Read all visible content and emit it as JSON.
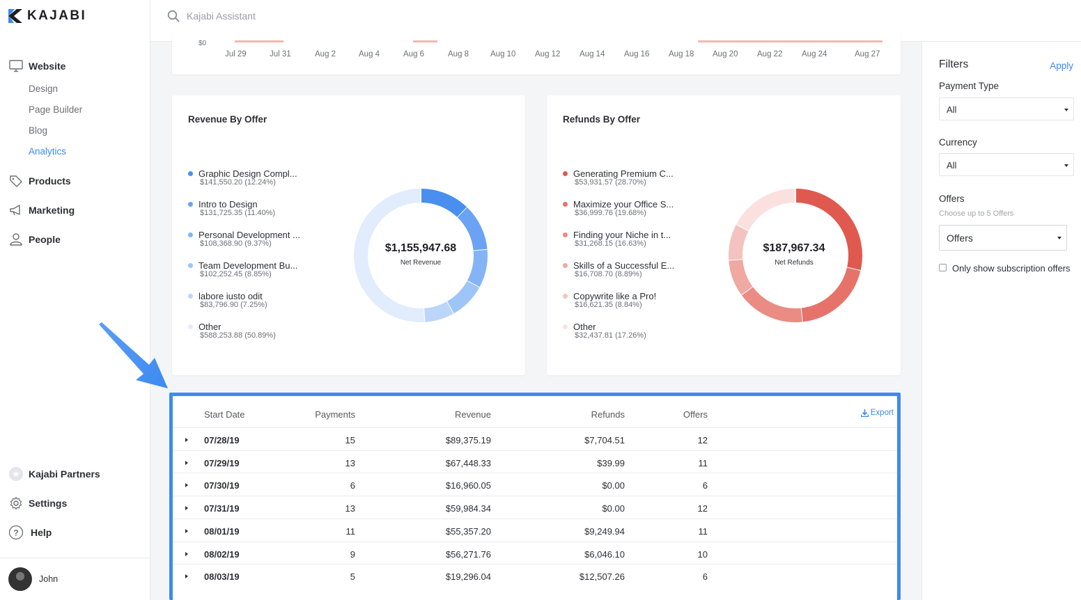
{
  "app": {
    "logo_text": "KAJABI",
    "search_placeholder": "Kajabi Assistant"
  },
  "sidebar": {
    "website_label": "Website",
    "website_items": [
      "Design",
      "Page Builder",
      "Blog",
      "Analytics"
    ],
    "active_item": "Analytics",
    "products_label": "Products",
    "marketing_label": "Marketing",
    "people_label": "People",
    "partners_label": "Kajabi Partners",
    "settings_label": "Settings",
    "help_label": "Help",
    "user_name": "John"
  },
  "timeline": {
    "y_tick": "$0",
    "dates": [
      "Jul 29",
      "Jul 31",
      "Aug 2",
      "Aug 4",
      "Aug 6",
      "Aug 8",
      "Aug 10",
      "Aug 12",
      "Aug 14",
      "Aug 16",
      "Aug 18",
      "Aug 20",
      "Aug 22",
      "Aug 24",
      "Aug 27"
    ]
  },
  "revenue_by_offer": {
    "title": "Revenue By Offer",
    "total": "$1,155,947.68",
    "total_label": "Net Revenue",
    "items": [
      {
        "name": "Graphic Design Compl...",
        "value": "$141,550.20 (12.24%)",
        "pct": 12.24,
        "color": "#4a8ff0"
      },
      {
        "name": "Intro to Design",
        "value": "$131,725.35 (11.40%)",
        "pct": 11.4,
        "color": "#6aa3f4"
      },
      {
        "name": "Personal Development ...",
        "value": "$108,368.90 (9.37%)",
        "pct": 9.37,
        "color": "#84b4f6"
      },
      {
        "name": "Team Development Bu...",
        "value": "$102,252.45 (8.85%)",
        "pct": 8.85,
        "color": "#9fc4f8"
      },
      {
        "name": "labore iusto odit",
        "value": "$83,796.90 (7.25%)",
        "pct": 7.25,
        "color": "#bcd6fa"
      },
      {
        "name": "Other",
        "value": "$588,253.88 (50.89%)",
        "pct": 50.89,
        "color": "#e1ecfc"
      }
    ]
  },
  "refunds_by_offer": {
    "title": "Refunds By Offer",
    "total": "$187,967.34",
    "total_label": "Net Refunds",
    "items": [
      {
        "name": "Generating Premium C...",
        "value": "$53,931.57 (28.70%)",
        "pct": 28.7,
        "color": "#e0594f"
      },
      {
        "name": "Maximize your Office S...",
        "value": "$36,999.76 (19.68%)",
        "pct": 19.68,
        "color": "#e5736a"
      },
      {
        "name": "Finding your Niche in t...",
        "value": "$31,268.15 (16.63%)",
        "pct": 16.63,
        "color": "#ea8b84"
      },
      {
        "name": "Skills of a Successful E...",
        "value": "$16,708.70 (8.89%)",
        "pct": 8.89,
        "color": "#efa8a2"
      },
      {
        "name": "Copywrite like a Pro!",
        "value": "$16,621.35 (8.84%)",
        "pct": 8.84,
        "color": "#f4c3bf"
      },
      {
        "name": "Other",
        "value": "$32,437.81 (17.26%)",
        "pct": 17.26,
        "color": "#fae1df"
      }
    ]
  },
  "table": {
    "headers": {
      "start_date": "Start Date",
      "payments": "Payments",
      "revenue": "Revenue",
      "refunds": "Refunds",
      "offers": "Offers"
    },
    "export_label": "Export",
    "rows": [
      {
        "date": "07/28/19",
        "payments": "15",
        "revenue": "$89,375.19",
        "refunds": "$7,704.51",
        "offers": "12"
      },
      {
        "date": "07/29/19",
        "payments": "13",
        "revenue": "$67,448.33",
        "refunds": "$39.99",
        "offers": "11"
      },
      {
        "date": "07/30/19",
        "payments": "6",
        "revenue": "$16,960.05",
        "refunds": "$0.00",
        "offers": "6"
      },
      {
        "date": "07/31/19",
        "payments": "13",
        "revenue": "$59,984.34",
        "refunds": "$0.00",
        "offers": "12"
      },
      {
        "date": "08/01/19",
        "payments": "11",
        "revenue": "$55,357.20",
        "refunds": "$9,249.94",
        "offers": "11"
      },
      {
        "date": "08/02/19",
        "payments": "9",
        "revenue": "$56,271.76",
        "refunds": "$6,046.10",
        "offers": "10"
      },
      {
        "date": "08/03/19",
        "payments": "5",
        "revenue": "$19,296.04",
        "refunds": "$12,507.26",
        "offers": "6"
      }
    ]
  },
  "filters": {
    "title": "Filters",
    "apply_label": "Apply",
    "payment_type_label": "Payment Type",
    "payment_type_value": "All",
    "currency_label": "Currency",
    "currency_value": "All",
    "offers_label": "Offers",
    "offers_hint": "Choose up to 5 Offers",
    "offers_value": "Offers",
    "subscription_label": "Only show subscription offers",
    "subscription_checked": false
  },
  "colors": {
    "accent": "#3d8af0",
    "chart_line": "#f08880"
  }
}
